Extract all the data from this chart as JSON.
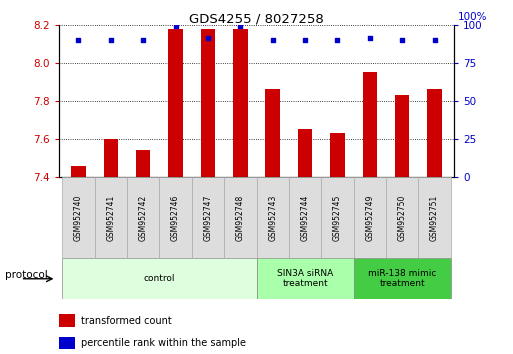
{
  "title": "GDS4255 / 8027258",
  "samples": [
    "GSM952740",
    "GSM952741",
    "GSM952742",
    "GSM952746",
    "GSM952747",
    "GSM952748",
    "GSM952743",
    "GSM952744",
    "GSM952745",
    "GSM952749",
    "GSM952750",
    "GSM952751"
  ],
  "transformed_count": [
    7.46,
    7.6,
    7.54,
    8.18,
    8.18,
    8.18,
    7.86,
    7.65,
    7.63,
    7.95,
    7.83,
    7.86
  ],
  "percentile_rank": [
    90,
    90,
    90,
    99,
    91,
    99,
    90,
    90,
    90,
    91,
    90,
    90
  ],
  "ylim_left": [
    7.4,
    8.2
  ],
  "ylim_right": [
    0,
    100
  ],
  "yticks_left": [
    7.4,
    7.6,
    7.8,
    8.0,
    8.2
  ],
  "yticks_right": [
    0,
    25,
    50,
    75,
    100
  ],
  "bar_color": "#cc0000",
  "dot_color": "#0000cc",
  "groups": [
    {
      "label": "control",
      "start": 0,
      "end": 5,
      "color": "#ddffdd"
    },
    {
      "label": "SIN3A siRNA\ntreatment",
      "start": 6,
      "end": 8,
      "color": "#aaffaa"
    },
    {
      "label": "miR-138 mimic\ntreatment",
      "start": 9,
      "end": 11,
      "color": "#44cc44"
    }
  ],
  "protocol_label": "protocol",
  "legend_bar_label": "transformed count",
  "legend_dot_label": "percentile rank within the sample",
  "bar_width": 0.45,
  "base_value": 7.4,
  "sample_box_color": "#dddddd",
  "sample_box_edge": "#aaaaaa"
}
